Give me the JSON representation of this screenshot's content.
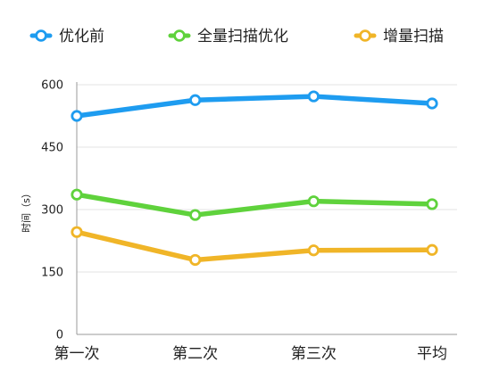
{
  "chart_data": {
    "type": "line",
    "title": "",
    "xlabel": "",
    "ylabel": "时间（s）",
    "categories": [
      "第一次",
      "第二次",
      "第三次",
      "平均"
    ],
    "ylim": [
      0,
      600
    ],
    "yticks": [
      "0",
      "150",
      "300",
      "450",
      "600"
    ],
    "ytick_values": [
      0,
      150,
      300,
      450,
      600
    ],
    "grid": true,
    "legend_position": "top",
    "series": [
      {
        "name": "优化前",
        "color": "#1e9cf0",
        "values": [
          525,
          563,
          572,
          555
        ]
      },
      {
        "name": "全量扫描优化",
        "color": "#5fd23c",
        "values": [
          336,
          287,
          320,
          313
        ]
      },
      {
        "name": "增量扫描",
        "color": "#f0b528",
        "values": [
          246,
          179,
          202,
          203
        ]
      }
    ]
  }
}
